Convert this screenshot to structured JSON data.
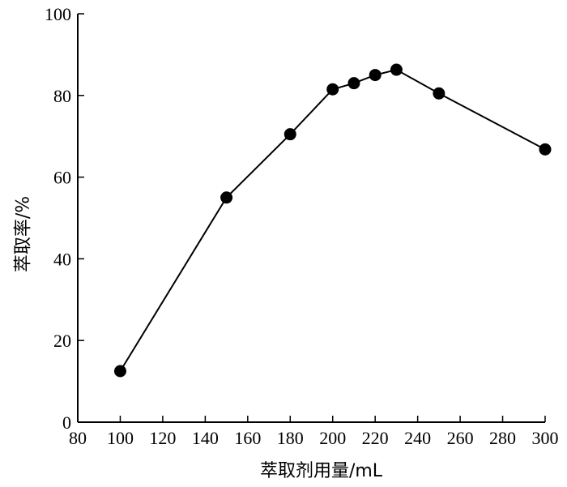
{
  "chart_data": {
    "type": "line",
    "title": "",
    "xlabel": "萃取剂用量/mL",
    "ylabel": "萃取率/%",
    "xlim": [
      80,
      300
    ],
    "ylim": [
      0,
      100
    ],
    "xticks": [
      "80",
      "100",
      "120",
      "140",
      "160",
      "180",
      "200",
      "220",
      "240",
      "260",
      "280",
      "300"
    ],
    "yticks": [
      "0",
      "20",
      "40",
      "60",
      "80",
      "100"
    ],
    "grid": false,
    "legend": "none",
    "series": [
      {
        "x": [
          100,
          150,
          180,
          200,
          210,
          220,
          230,
          250,
          300
        ],
        "y": [
          12.5,
          55,
          70.5,
          81.5,
          83,
          85,
          86.3,
          80.5,
          66.8
        ],
        "color": "#000000",
        "marker": "circle"
      }
    ]
  }
}
